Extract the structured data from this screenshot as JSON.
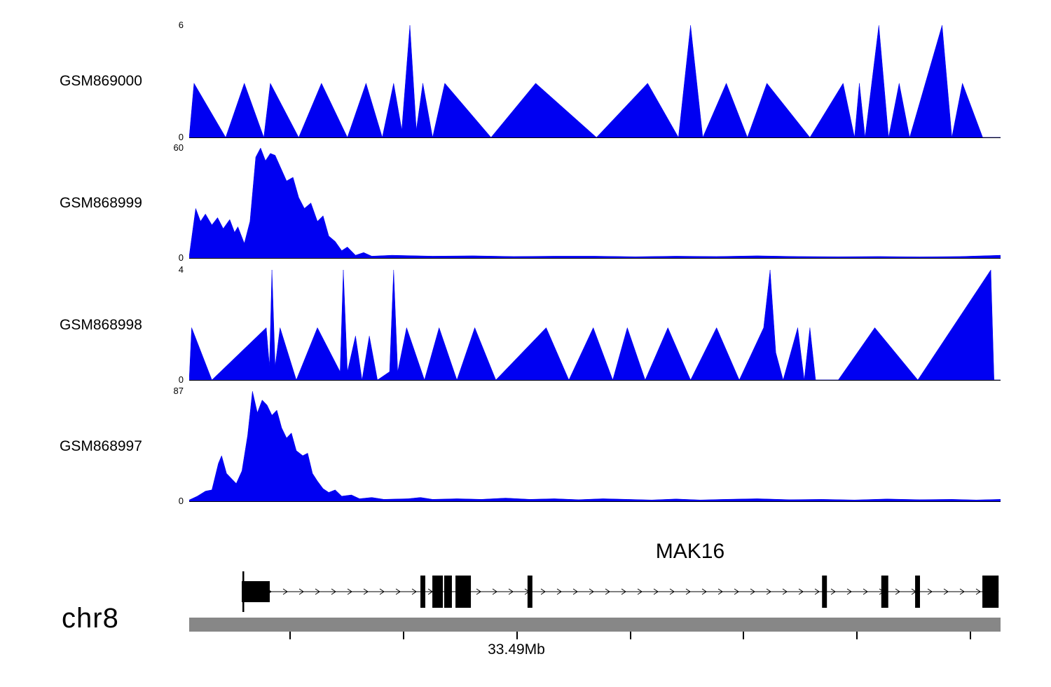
{
  "chart_data": {
    "type": "area",
    "title": "",
    "legend": "none",
    "grid": false,
    "accent_color": "#0000f2",
    "tracks": [
      {
        "name": "GSM869000",
        "ymin": 0,
        "ymax": 6,
        "points": [
          [
            0,
            0
          ],
          [
            0.006,
            2.9
          ],
          [
            0.045,
            0
          ],
          [
            0.068,
            2.9
          ],
          [
            0.092,
            0
          ],
          [
            0.1,
            2.9
          ],
          [
            0.135,
            0
          ],
          [
            0.163,
            2.9
          ],
          [
            0.195,
            0
          ],
          [
            0.218,
            2.9
          ],
          [
            0.238,
            0
          ],
          [
            0.252,
            2.9
          ],
          [
            0.262,
            0.4
          ],
          [
            0.272,
            6
          ],
          [
            0.28,
            0.4
          ],
          [
            0.288,
            2.9
          ],
          [
            0.3,
            0
          ],
          [
            0.315,
            2.9
          ],
          [
            0.372,
            0
          ],
          [
            0.427,
            2.9
          ],
          [
            0.502,
            0
          ],
          [
            0.565,
            2.9
          ],
          [
            0.603,
            0
          ],
          [
            0.618,
            6
          ],
          [
            0.633,
            0
          ],
          [
            0.662,
            2.9
          ],
          [
            0.688,
            0
          ],
          [
            0.712,
            2.9
          ],
          [
            0.765,
            0
          ],
          [
            0.806,
            2.9
          ],
          [
            0.82,
            0
          ],
          [
            0.826,
            2.9
          ],
          [
            0.833,
            0
          ],
          [
            0.85,
            6
          ],
          [
            0.862,
            0
          ],
          [
            0.875,
            2.9
          ],
          [
            0.888,
            0
          ],
          [
            0.928,
            6
          ],
          [
            0.94,
            0
          ],
          [
            0.953,
            2.9
          ],
          [
            0.978,
            0
          ]
        ]
      },
      {
        "name": "GSM868999",
        "ymin": 0,
        "ymax": 60,
        "points": [
          [
            0,
            1
          ],
          [
            0.008,
            27
          ],
          [
            0.014,
            20
          ],
          [
            0.02,
            24
          ],
          [
            0.028,
            18
          ],
          [
            0.035,
            22
          ],
          [
            0.042,
            16
          ],
          [
            0.05,
            21
          ],
          [
            0.056,
            14
          ],
          [
            0.06,
            17
          ],
          [
            0.068,
            8
          ],
          [
            0.075,
            20
          ],
          [
            0.082,
            55
          ],
          [
            0.088,
            60
          ],
          [
            0.094,
            53
          ],
          [
            0.1,
            57
          ],
          [
            0.106,
            56
          ],
          [
            0.112,
            50
          ],
          [
            0.12,
            42
          ],
          [
            0.128,
            44
          ],
          [
            0.135,
            33
          ],
          [
            0.142,
            27
          ],
          [
            0.15,
            30
          ],
          [
            0.158,
            20
          ],
          [
            0.165,
            23
          ],
          [
            0.172,
            12
          ],
          [
            0.18,
            9
          ],
          [
            0.188,
            4
          ],
          [
            0.195,
            6
          ],
          [
            0.205,
            1.5
          ],
          [
            0.215,
            3
          ],
          [
            0.225,
            1
          ],
          [
            0.25,
            1.5
          ],
          [
            0.3,
            1
          ],
          [
            0.35,
            1.2
          ],
          [
            0.4,
            0.8
          ],
          [
            0.45,
            1
          ],
          [
            0.5,
            1
          ],
          [
            0.55,
            0.7
          ],
          [
            0.6,
            1
          ],
          [
            0.65,
            0.8
          ],
          [
            0.7,
            1.2
          ],
          [
            0.75,
            0.8
          ],
          [
            0.8,
            0.7
          ],
          [
            0.85,
            0.8
          ],
          [
            0.9,
            0.6
          ],
          [
            0.95,
            0.8
          ],
          [
            1,
            1.5
          ]
        ]
      },
      {
        "name": "GSM868998",
        "ymin": 0,
        "ymax": 4,
        "points": [
          [
            0,
            0
          ],
          [
            0.003,
            1.9
          ],
          [
            0.028,
            0
          ],
          [
            0.095,
            1.9
          ],
          [
            0.099,
            0.5
          ],
          [
            0.102,
            4
          ],
          [
            0.106,
            0.5
          ],
          [
            0.112,
            1.9
          ],
          [
            0.132,
            0
          ],
          [
            0.158,
            1.9
          ],
          [
            0.186,
            0.3
          ],
          [
            0.19,
            4
          ],
          [
            0.195,
            0.3
          ],
          [
            0.205,
            1.6
          ],
          [
            0.213,
            0
          ],
          [
            0.222,
            1.6
          ],
          [
            0.232,
            0
          ],
          [
            0.247,
            0.3
          ],
          [
            0.252,
            4
          ],
          [
            0.257,
            0.3
          ],
          [
            0.268,
            1.9
          ],
          [
            0.29,
            0
          ],
          [
            0.308,
            1.9
          ],
          [
            0.33,
            0
          ],
          [
            0.352,
            1.9
          ],
          [
            0.378,
            0
          ],
          [
            0.44,
            1.9
          ],
          [
            0.468,
            0
          ],
          [
            0.498,
            1.9
          ],
          [
            0.522,
            0
          ],
          [
            0.54,
            1.9
          ],
          [
            0.562,
            0
          ],
          [
            0.59,
            1.9
          ],
          [
            0.618,
            0
          ],
          [
            0.65,
            1.9
          ],
          [
            0.678,
            0
          ],
          [
            0.708,
            1.9
          ],
          [
            0.716,
            4
          ],
          [
            0.723,
            1
          ],
          [
            0.732,
            0
          ],
          [
            0.75,
            1.9
          ],
          [
            0.758,
            0
          ],
          [
            0.765,
            1.9
          ],
          [
            0.772,
            0
          ],
          [
            0.8,
            0
          ],
          [
            0.845,
            1.9
          ],
          [
            0.898,
            0
          ],
          [
            0.988,
            4
          ],
          [
            0.992,
            0
          ]
        ]
      },
      {
        "name": "GSM868997",
        "ymin": 0,
        "ymax": 87,
        "points": [
          [
            0,
            1
          ],
          [
            0.01,
            4
          ],
          [
            0.02,
            8
          ],
          [
            0.028,
            9
          ],
          [
            0.036,
            30
          ],
          [
            0.04,
            36
          ],
          [
            0.046,
            22
          ],
          [
            0.052,
            18
          ],
          [
            0.058,
            14
          ],
          [
            0.065,
            24
          ],
          [
            0.072,
            52
          ],
          [
            0.078,
            87
          ],
          [
            0.084,
            70
          ],
          [
            0.09,
            80
          ],
          [
            0.096,
            76
          ],
          [
            0.102,
            68
          ],
          [
            0.108,
            72
          ],
          [
            0.114,
            58
          ],
          [
            0.12,
            50
          ],
          [
            0.126,
            54
          ],
          [
            0.132,
            40
          ],
          [
            0.14,
            36
          ],
          [
            0.146,
            38
          ],
          [
            0.152,
            22
          ],
          [
            0.158,
            16
          ],
          [
            0.165,
            10
          ],
          [
            0.172,
            7
          ],
          [
            0.18,
            9
          ],
          [
            0.188,
            4
          ],
          [
            0.2,
            5
          ],
          [
            0.21,
            2
          ],
          [
            0.225,
            3
          ],
          [
            0.24,
            1.5
          ],
          [
            0.27,
            2
          ],
          [
            0.285,
            3
          ],
          [
            0.3,
            1.5
          ],
          [
            0.33,
            2
          ],
          [
            0.36,
            1.5
          ],
          [
            0.39,
            2.5
          ],
          [
            0.42,
            1.5
          ],
          [
            0.45,
            2
          ],
          [
            0.48,
            1.2
          ],
          [
            0.51,
            2
          ],
          [
            0.54,
            1.5
          ],
          [
            0.57,
            1
          ],
          [
            0.6,
            1.8
          ],
          [
            0.63,
            1
          ],
          [
            0.66,
            1.5
          ],
          [
            0.7,
            2
          ],
          [
            0.74,
            1.2
          ],
          [
            0.78,
            1.5
          ],
          [
            0.82,
            1
          ],
          [
            0.86,
            1.8
          ],
          [
            0.9,
            1.2
          ],
          [
            0.94,
            1.5
          ],
          [
            0.97,
            1
          ],
          [
            1,
            1.5
          ]
        ]
      }
    ],
    "gene_track": {
      "gene_label": "MAK16",
      "strand": "right",
      "line_start": 0.0648,
      "line_end": 0.9976,
      "start_tick": 0.0665,
      "exons": [
        {
          "x": 0.0648,
          "w": 0.0345,
          "tall": false
        },
        {
          "x": 0.285,
          "w": 0.006,
          "tall": true
        },
        {
          "x": 0.2997,
          "w": 0.013,
          "tall": true
        },
        {
          "x": 0.3143,
          "w": 0.0095,
          "tall": true
        },
        {
          "x": 0.3282,
          "w": 0.019,
          "tall": true
        },
        {
          "x": 0.417,
          "w": 0.006,
          "tall": true
        },
        {
          "x": 0.78,
          "w": 0.006,
          "tall": true
        },
        {
          "x": 0.853,
          "w": 0.0086,
          "tall": true
        },
        {
          "x": 0.8947,
          "w": 0.006,
          "tall": true
        },
        {
          "x": 0.9776,
          "w": 0.02,
          "tall": true
        }
      ]
    },
    "chromosome": {
      "name": "chr8",
      "bar_color": "#878787",
      "ticks": [
        0.1235,
        0.2634,
        0.4033,
        0.5432,
        0.6822,
        0.8221,
        0.962
      ],
      "label": "33.49Mb",
      "label_tick": 2
    }
  }
}
